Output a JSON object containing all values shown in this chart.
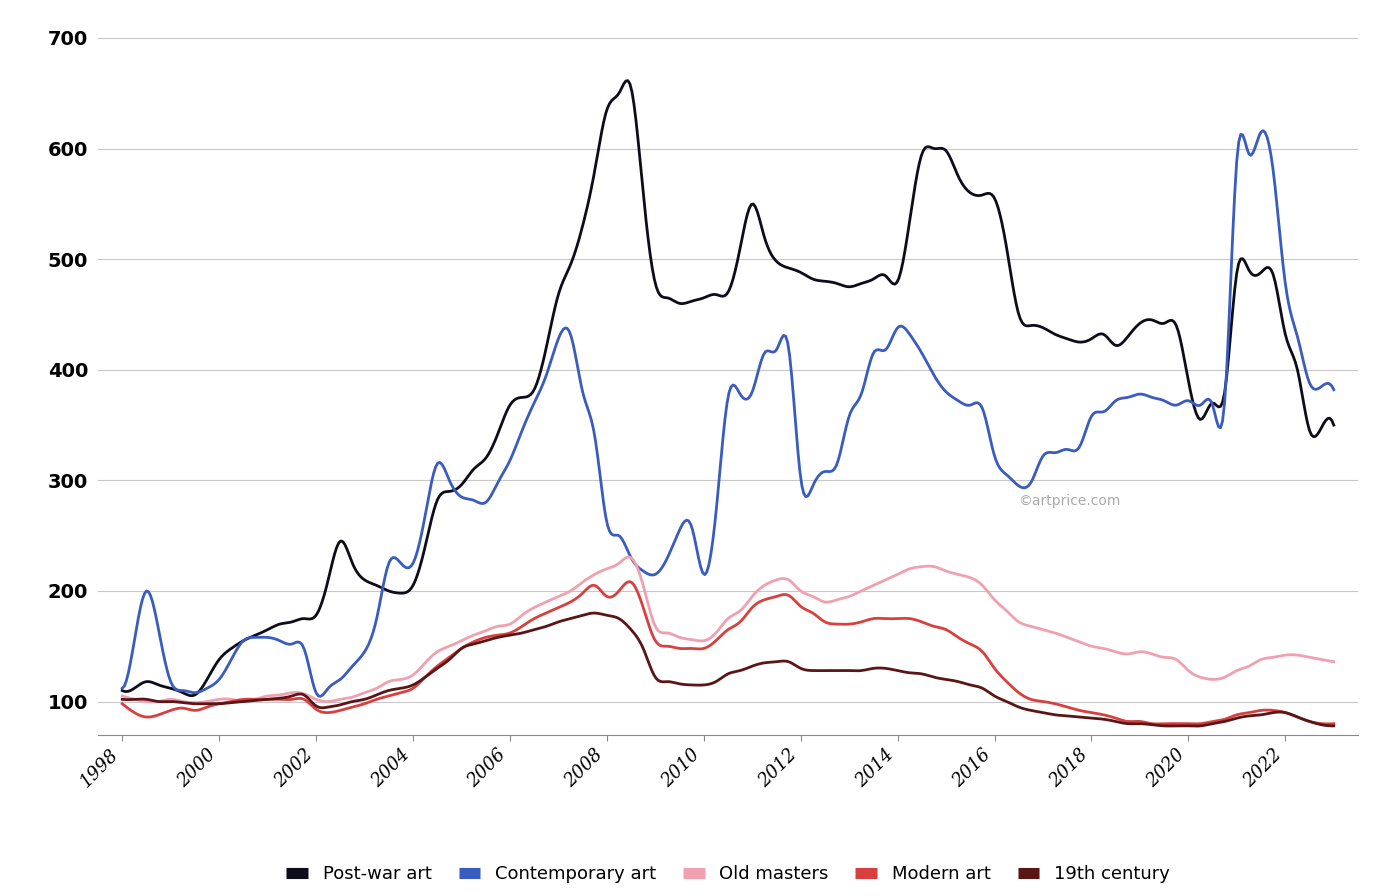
{
  "watermark": "©artprice.com",
  "ylim": [
    70,
    710
  ],
  "yticks": [
    100,
    200,
    300,
    400,
    500,
    600,
    700
  ],
  "background_color": "#ffffff",
  "grid_color": "#c8c8c8",
  "series": {
    "post_war": {
      "label": "Post-war art",
      "color": "#0d0d1a",
      "linewidth": 2.0,
      "x": [
        1998.0,
        1998.25,
        1998.5,
        1998.75,
        1999.0,
        1999.25,
        1999.5,
        1999.75,
        2000.0,
        2000.25,
        2000.5,
        2000.75,
        2001.0,
        2001.25,
        2001.5,
        2001.75,
        2002.0,
        2002.25,
        2002.5,
        2002.75,
        2003.0,
        2003.25,
        2003.5,
        2003.75,
        2004.0,
        2004.25,
        2004.5,
        2004.75,
        2005.0,
        2005.25,
        2005.5,
        2005.75,
        2006.0,
        2006.25,
        2006.5,
        2006.75,
        2007.0,
        2007.25,
        2007.5,
        2007.75,
        2008.0,
        2008.25,
        2008.5,
        2008.75,
        2009.0,
        2009.25,
        2009.5,
        2009.75,
        2010.0,
        2010.25,
        2010.5,
        2010.75,
        2011.0,
        2011.25,
        2011.5,
        2011.75,
        2012.0,
        2012.25,
        2012.5,
        2012.75,
        2013.0,
        2013.25,
        2013.5,
        2013.75,
        2014.0,
        2014.25,
        2014.5,
        2014.75,
        2015.0,
        2015.25,
        2015.5,
        2015.75,
        2016.0,
        2016.25,
        2016.5,
        2016.75,
        2017.0,
        2017.25,
        2017.5,
        2017.75,
        2018.0,
        2018.25,
        2018.5,
        2018.75,
        2019.0,
        2019.25,
        2019.5,
        2019.75,
        2020.0,
        2020.25,
        2020.5,
        2020.75,
        2021.0,
        2021.25,
        2021.5,
        2021.75,
        2022.0,
        2022.25,
        2022.5,
        2022.75,
        2023.0
      ],
      "y": [
        110,
        112,
        118,
        115,
        112,
        108,
        106,
        120,
        138,
        148,
        155,
        160,
        165,
        170,
        172,
        175,
        178,
        210,
        245,
        225,
        210,
        205,
        200,
        198,
        205,
        240,
        282,
        290,
        296,
        310,
        320,
        342,
        368,
        375,
        382,
        420,
        468,
        495,
        530,
        580,
        635,
        650,
        655,
        560,
        478,
        465,
        460,
        462,
        465,
        468,
        470,
        510,
        550,
        520,
        498,
        492,
        488,
        482,
        480,
        478,
        475,
        478,
        482,
        485,
        480,
        535,
        595,
        600,
        598,
        575,
        560,
        558,
        555,
        510,
        450,
        440,
        438,
        432,
        428,
        425,
        428,
        432,
        422,
        430,
        442,
        445,
        442,
        440,
        390,
        355,
        370,
        380,
        488,
        490,
        488,
        486,
        432,
        400,
        345,
        348,
        350
      ]
    },
    "contemporary": {
      "label": "Contemporary art",
      "color": "#3a5bbf",
      "linewidth": 2.0,
      "x": [
        1998.0,
        1998.25,
        1998.5,
        1998.75,
        1999.0,
        1999.25,
        1999.5,
        1999.75,
        2000.0,
        2000.25,
        2000.5,
        2000.75,
        2001.0,
        2001.25,
        2001.5,
        2001.75,
        2002.0,
        2002.25,
        2002.5,
        2002.75,
        2003.0,
        2003.25,
        2003.5,
        2003.75,
        2004.0,
        2004.25,
        2004.5,
        2004.75,
        2005.0,
        2005.25,
        2005.5,
        2005.75,
        2006.0,
        2006.25,
        2006.5,
        2006.75,
        2007.0,
        2007.25,
        2007.5,
        2007.75,
        2008.0,
        2008.25,
        2008.5,
        2008.75,
        2009.0,
        2009.25,
        2009.5,
        2009.75,
        2010.0,
        2010.25,
        2010.5,
        2010.75,
        2011.0,
        2011.25,
        2011.5,
        2011.75,
        2012.0,
        2012.25,
        2012.5,
        2012.75,
        2013.0,
        2013.25,
        2013.5,
        2013.75,
        2014.0,
        2014.25,
        2014.5,
        2014.75,
        2015.0,
        2015.25,
        2015.5,
        2015.75,
        2016.0,
        2016.25,
        2016.5,
        2016.75,
        2017.0,
        2017.25,
        2017.5,
        2017.75,
        2018.0,
        2018.25,
        2018.5,
        2018.75,
        2019.0,
        2019.25,
        2019.5,
        2019.75,
        2020.0,
        2020.25,
        2020.5,
        2020.75,
        2021.0,
        2021.25,
        2021.5,
        2021.75,
        2022.0,
        2022.25,
        2022.5,
        2022.75,
        2023.0
      ],
      "y": [
        112,
        155,
        200,
        165,
        118,
        110,
        108,
        112,
        120,
        138,
        155,
        158,
        158,
        155,
        152,
        148,
        108,
        112,
        120,
        132,
        145,
        175,
        225,
        225,
        225,
        268,
        315,
        300,
        285,
        282,
        280,
        298,
        318,
        345,
        370,
        395,
        428,
        432,
        380,
        340,
        262,
        250,
        230,
        218,
        215,
        230,
        255,
        258,
        215,
        270,
        375,
        378,
        380,
        415,
        418,
        420,
        302,
        295,
        308,
        315,
        358,
        378,
        415,
        418,
        438,
        432,
        415,
        395,
        380,
        372,
        368,
        365,
        322,
        305,
        295,
        298,
        322,
        325,
        328,
        330,
        358,
        362,
        372,
        375,
        378,
        375,
        372,
        368,
        372,
        368,
        368,
        372,
        590,
        595,
        615,
        580,
        478,
        430,
        388,
        385,
        382
      ]
    },
    "old_masters": {
      "label": "Old masters",
      "color": "#f0a0b0",
      "linewidth": 2.0,
      "x": [
        1998.0,
        1998.25,
        1998.5,
        1998.75,
        1999.0,
        1999.25,
        1999.5,
        1999.75,
        2000.0,
        2000.25,
        2000.5,
        2000.75,
        2001.0,
        2001.25,
        2001.5,
        2001.75,
        2002.0,
        2002.25,
        2002.5,
        2002.75,
        2003.0,
        2003.25,
        2003.5,
        2003.75,
        2004.0,
        2004.25,
        2004.5,
        2004.75,
        2005.0,
        2005.25,
        2005.5,
        2005.75,
        2006.0,
        2006.25,
        2006.5,
        2006.75,
        2007.0,
        2007.25,
        2007.5,
        2007.75,
        2008.0,
        2008.25,
        2008.5,
        2008.75,
        2009.0,
        2009.25,
        2009.5,
        2009.75,
        2010.0,
        2010.25,
        2010.5,
        2010.75,
        2011.0,
        2011.25,
        2011.5,
        2011.75,
        2012.0,
        2012.25,
        2012.5,
        2012.75,
        2013.0,
        2013.25,
        2013.5,
        2013.75,
        2014.0,
        2014.25,
        2014.5,
        2014.75,
        2015.0,
        2015.25,
        2015.5,
        2015.75,
        2016.0,
        2016.25,
        2016.5,
        2016.75,
        2017.0,
        2017.25,
        2017.5,
        2017.75,
        2018.0,
        2018.25,
        2018.5,
        2018.75,
        2019.0,
        2019.25,
        2019.5,
        2019.75,
        2020.0,
        2020.25,
        2020.5,
        2020.75,
        2021.0,
        2021.25,
        2021.5,
        2021.75,
        2022.0,
        2022.25,
        2022.5,
        2022.75,
        2023.0
      ],
      "y": [
        105,
        102,
        100,
        100,
        102,
        100,
        99,
        100,
        102,
        102,
        100,
        102,
        105,
        106,
        108,
        107,
        102,
        100,
        102,
        104,
        108,
        112,
        118,
        120,
        124,
        135,
        145,
        150,
        155,
        160,
        164,
        168,
        170,
        178,
        185,
        190,
        195,
        200,
        208,
        215,
        220,
        225,
        230,
        205,
        168,
        162,
        158,
        156,
        155,
        162,
        175,
        182,
        195,
        205,
        210,
        210,
        200,
        195,
        190,
        192,
        195,
        200,
        205,
        210,
        215,
        220,
        222,
        222,
        218,
        215,
        212,
        205,
        192,
        182,
        172,
        168,
        165,
        162,
        158,
        154,
        150,
        148,
        145,
        143,
        145,
        143,
        140,
        138,
        128,
        122,
        120,
        122,
        128,
        132,
        138,
        140,
        142,
        142,
        140,
        138,
        136
      ]
    },
    "modern": {
      "label": "Modern art",
      "color": "#d84040",
      "linewidth": 2.0,
      "x": [
        1998.0,
        1998.25,
        1998.5,
        1998.75,
        1999.0,
        1999.25,
        1999.5,
        1999.75,
        2000.0,
        2000.25,
        2000.5,
        2000.75,
        2001.0,
        2001.25,
        2001.5,
        2001.75,
        2002.0,
        2002.25,
        2002.5,
        2002.75,
        2003.0,
        2003.25,
        2003.5,
        2003.75,
        2004.0,
        2004.25,
        2004.5,
        2004.75,
        2005.0,
        2005.25,
        2005.5,
        2005.75,
        2006.0,
        2006.25,
        2006.5,
        2006.75,
        2007.0,
        2007.25,
        2007.5,
        2007.75,
        2008.0,
        2008.25,
        2008.5,
        2008.75,
        2009.0,
        2009.25,
        2009.5,
        2009.75,
        2010.0,
        2010.25,
        2010.5,
        2010.75,
        2011.0,
        2011.25,
        2011.5,
        2011.75,
        2012.0,
        2012.25,
        2012.5,
        2012.75,
        2013.0,
        2013.25,
        2013.5,
        2013.75,
        2014.0,
        2014.25,
        2014.5,
        2014.75,
        2015.0,
        2015.25,
        2015.5,
        2015.75,
        2016.0,
        2016.25,
        2016.5,
        2016.75,
        2017.0,
        2017.25,
        2017.5,
        2017.75,
        2018.0,
        2018.25,
        2018.5,
        2018.75,
        2019.0,
        2019.25,
        2019.5,
        2019.75,
        2020.0,
        2020.25,
        2020.5,
        2020.75,
        2021.0,
        2021.25,
        2021.5,
        2021.75,
        2022.0,
        2022.25,
        2022.5,
        2022.75,
        2023.0
      ],
      "y": [
        98,
        90,
        86,
        88,
        92,
        94,
        92,
        95,
        98,
        100,
        102,
        102,
        102,
        102,
        102,
        102,
        93,
        90,
        92,
        95,
        98,
        102,
        105,
        108,
        112,
        122,
        132,
        140,
        148,
        154,
        158,
        160,
        162,
        168,
        175,
        180,
        185,
        190,
        198,
        205,
        195,
        200,
        208,
        185,
        155,
        150,
        148,
        148,
        148,
        155,
        165,
        172,
        185,
        192,
        195,
        196,
        186,
        180,
        172,
        170,
        170,
        172,
        175,
        175,
        175,
        175,
        172,
        168,
        165,
        158,
        152,
        145,
        130,
        118,
        108,
        102,
        100,
        98,
        95,
        92,
        90,
        88,
        85,
        82,
        82,
        80,
        80,
        80,
        80,
        80,
        82,
        84,
        88,
        90,
        92,
        92,
        90,
        86,
        82,
        80,
        80
      ]
    },
    "century_19": {
      "label": "19th century",
      "color": "#5a1515",
      "linewidth": 2.0,
      "x": [
        1998.0,
        1998.25,
        1998.5,
        1998.75,
        1999.0,
        1999.25,
        1999.5,
        1999.75,
        2000.0,
        2000.25,
        2000.5,
        2000.75,
        2001.0,
        2001.25,
        2001.5,
        2001.75,
        2002.0,
        2002.25,
        2002.5,
        2002.75,
        2003.0,
        2003.25,
        2003.5,
        2003.75,
        2004.0,
        2004.25,
        2004.5,
        2004.75,
        2005.0,
        2005.25,
        2005.5,
        2005.75,
        2006.0,
        2006.25,
        2006.5,
        2006.75,
        2007.0,
        2007.25,
        2007.5,
        2007.75,
        2008.0,
        2008.25,
        2008.5,
        2008.75,
        2009.0,
        2009.25,
        2009.5,
        2009.75,
        2010.0,
        2010.25,
        2010.5,
        2010.75,
        2011.0,
        2011.25,
        2011.5,
        2011.75,
        2012.0,
        2012.25,
        2012.5,
        2012.75,
        2013.0,
        2013.25,
        2013.5,
        2013.75,
        2014.0,
        2014.25,
        2014.5,
        2014.75,
        2015.0,
        2015.25,
        2015.5,
        2015.75,
        2016.0,
        2016.25,
        2016.5,
        2016.75,
        2017.0,
        2017.25,
        2017.5,
        2017.75,
        2018.0,
        2018.25,
        2018.5,
        2018.75,
        2019.0,
        2019.25,
        2019.5,
        2019.75,
        2020.0,
        2020.25,
        2020.5,
        2020.75,
        2021.0,
        2021.25,
        2021.5,
        2021.75,
        2022.0,
        2022.25,
        2022.5,
        2022.75,
        2023.0
      ],
      "y": [
        102,
        102,
        102,
        100,
        100,
        99,
        98,
        98,
        98,
        99,
        100,
        101,
        102,
        103,
        105,
        106,
        96,
        95,
        97,
        100,
        102,
        106,
        110,
        112,
        115,
        122,
        130,
        138,
        148,
        152,
        155,
        158,
        160,
        162,
        165,
        168,
        172,
        175,
        178,
        180,
        178,
        175,
        165,
        148,
        122,
        118,
        116,
        115,
        115,
        118,
        125,
        128,
        132,
        135,
        136,
        136,
        130,
        128,
        128,
        128,
        128,
        128,
        130,
        130,
        128,
        126,
        125,
        122,
        120,
        118,
        115,
        112,
        105,
        100,
        95,
        92,
        90,
        88,
        87,
        86,
        85,
        84,
        82,
        80,
        80,
        79,
        78,
        78,
        78,
        78,
        80,
        82,
        85,
        87,
        88,
        90,
        90,
        86,
        82,
        79,
        78
      ]
    }
  },
  "legend": {
    "entries": [
      "Post-war art",
      "Contemporary art",
      "Old masters",
      "Modern art",
      "19th century"
    ],
    "colors": [
      "#0d0d1a",
      "#3a5bbf",
      "#f0a0b0",
      "#d84040",
      "#5a1515"
    ],
    "fontsize": 13
  },
  "xticks": [
    1998,
    2000,
    2002,
    2004,
    2006,
    2008,
    2010,
    2012,
    2014,
    2016,
    2018,
    2020,
    2022
  ],
  "xtick_labels": [
    "1998",
    "2000",
    "2002",
    "2004",
    "2006",
    "2008",
    "2010",
    "2012",
    "2014",
    "2016",
    "2018",
    "2020",
    "2022"
  ]
}
